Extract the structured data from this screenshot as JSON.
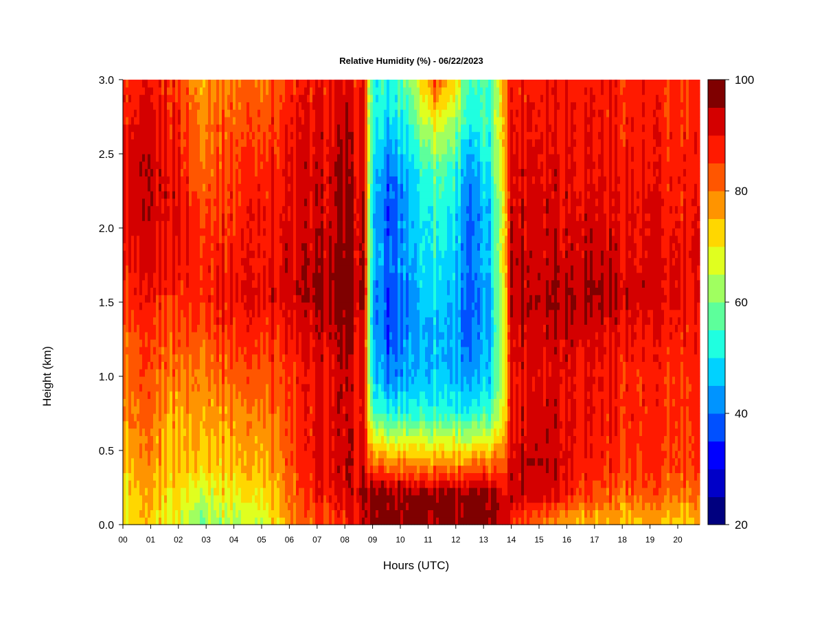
{
  "chart_data": {
    "type": "heatmap",
    "title": "Relative Humidity (%) - 06/22/2023",
    "xlabel": "Hours (UTC)",
    "ylabel": "Height (km)",
    "x_tick_labels": [
      "00",
      "01",
      "02",
      "03",
      "04",
      "05",
      "06",
      "07",
      "08",
      "09",
      "10",
      "11",
      "12",
      "13",
      "14",
      "15",
      "16",
      "17",
      "18",
      "19",
      "20"
    ],
    "xlim": [
      0,
      20.8
    ],
    "y_tick_labels": [
      "0.0",
      "0.5",
      "1.0",
      "1.5",
      "2.0",
      "2.5",
      "3.0"
    ],
    "y_ticks": [
      0,
      0.5,
      1.0,
      1.5,
      2.0,
      2.5,
      3.0
    ],
    "ylim": [
      0,
      3.0
    ],
    "colorbar": {
      "min": 20,
      "max": 100,
      "step": 5,
      "tick_labels": [
        "20",
        "40",
        "60",
        "80",
        "100"
      ],
      "ticks": [
        20,
        40,
        60,
        80,
        100
      ],
      "colors": [
        "#00007f",
        "#0000c8",
        "#0000ff",
        "#0050ff",
        "#0094ff",
        "#00d2ff",
        "#1fffe0",
        "#5dff9b",
        "#a0ff60",
        "#e0ff1f",
        "#ffd700",
        "#ff9400",
        "#ff5600",
        "#ff1a00",
        "#d40000",
        "#7f0000"
      ]
    },
    "profile_heights_km": [
      0.05,
      0.2,
      0.4,
      0.75,
      1.0,
      1.3,
      1.55,
      1.8,
      2.1,
      2.4,
      2.75,
      3.0
    ],
    "profiles": [
      {
        "hour": 0.0,
        "rh": [
          70,
          72,
          74,
          78,
          80,
          82,
          86,
          88,
          90,
          90,
          88,
          86
        ]
      },
      {
        "hour": 1.0,
        "rh": [
          72,
          74,
          76,
          80,
          82,
          84,
          88,
          90,
          92,
          92,
          90,
          88
        ]
      },
      {
        "hour": 2.0,
        "rh": [
          70,
          72,
          74,
          76,
          80,
          84,
          88,
          90,
          92,
          90,
          88,
          86
        ]
      },
      {
        "hour": 2.6,
        "rh": [
          62,
          66,
          74,
          78,
          80,
          84,
          88,
          88,
          86,
          82,
          80,
          78
        ]
      },
      {
        "hour": 3.5,
        "rh": [
          64,
          70,
          74,
          78,
          82,
          86,
          90,
          88,
          86,
          84,
          82,
          80
        ]
      },
      {
        "hour": 5.0,
        "rh": [
          68,
          72,
          76,
          80,
          84,
          88,
          92,
          90,
          90,
          88,
          84,
          82
        ]
      },
      {
        "hour": 6.0,
        "rh": [
          78,
          80,
          82,
          84,
          86,
          88,
          92,
          92,
          90,
          90,
          88,
          86
        ]
      },
      {
        "hour": 7.0,
        "rh": [
          84,
          88,
          90,
          90,
          90,
          92,
          95,
          94,
          92,
          92,
          90,
          88
        ]
      },
      {
        "hour": 8.0,
        "rh": [
          86,
          90,
          92,
          92,
          92,
          94,
          98,
          96,
          94,
          94,
          92,
          90
        ]
      },
      {
        "hour": 8.7,
        "rh": [
          92,
          94,
          90,
          88,
          88,
          90,
          94,
          92,
          92,
          90,
          88,
          88
        ]
      },
      {
        "hour": 9.0,
        "rh": [
          98,
          98,
          82,
          56,
          48,
          44,
          44,
          48,
          46,
          50,
          54,
          52
        ]
      },
      {
        "hour": 9.6,
        "rh": [
          98,
          98,
          80,
          52,
          40,
          36,
          36,
          38,
          36,
          38,
          48,
          52
        ]
      },
      {
        "hour": 10.4,
        "rh": [
          98,
          98,
          80,
          54,
          46,
          44,
          44,
          46,
          46,
          50,
          56,
          62
        ]
      },
      {
        "hour": 11.2,
        "rh": [
          98,
          98,
          80,
          54,
          48,
          46,
          50,
          52,
          54,
          58,
          72,
          84
        ]
      },
      {
        "hour": 12.0,
        "rh": [
          98,
          98,
          80,
          54,
          46,
          44,
          46,
          48,
          50,
          54,
          64,
          72
        ]
      },
      {
        "hour": 12.6,
        "rh": [
          98,
          98,
          80,
          52,
          42,
          38,
          36,
          38,
          38,
          40,
          50,
          52
        ]
      },
      {
        "hour": 13.3,
        "rh": [
          96,
          96,
          80,
          56,
          48,
          46,
          46,
          48,
          48,
          52,
          56,
          56
        ]
      },
      {
        "hour": 13.8,
        "rh": [
          96,
          94,
          86,
          76,
          74,
          74,
          76,
          78,
          76,
          80,
          82,
          82
        ]
      },
      {
        "hour": 14.0,
        "rh": [
          86,
          94,
          92,
          90,
          90,
          92,
          94,
          94,
          92,
          92,
          90,
          88
        ]
      },
      {
        "hour": 15.0,
        "rh": [
          84,
          94,
          96,
          94,
          92,
          94,
          96,
          94,
          94,
          92,
          90,
          90
        ]
      },
      {
        "hour": 16.0,
        "rh": [
          78,
          90,
          92,
          92,
          92,
          94,
          96,
          94,
          92,
          92,
          90,
          90
        ]
      },
      {
        "hour": 17.0,
        "rh": [
          76,
          84,
          88,
          90,
          90,
          92,
          96,
          94,
          92,
          90,
          90,
          88
        ]
      },
      {
        "hour": 18.0,
        "rh": [
          76,
          82,
          86,
          88,
          88,
          90,
          94,
          92,
          90,
          90,
          88,
          88
        ]
      },
      {
        "hour": 19.0,
        "rh": [
          76,
          82,
          86,
          86,
          86,
          88,
          92,
          90,
          90,
          88,
          88,
          86
        ]
      },
      {
        "hour": 20.0,
        "rh": [
          74,
          80,
          84,
          86,
          86,
          88,
          90,
          90,
          88,
          88,
          86,
          86
        ]
      },
      {
        "hour": 20.8,
        "rh": [
          74,
          80,
          84,
          84,
          86,
          86,
          88,
          88,
          88,
          86,
          86,
          86
        ]
      }
    ]
  }
}
